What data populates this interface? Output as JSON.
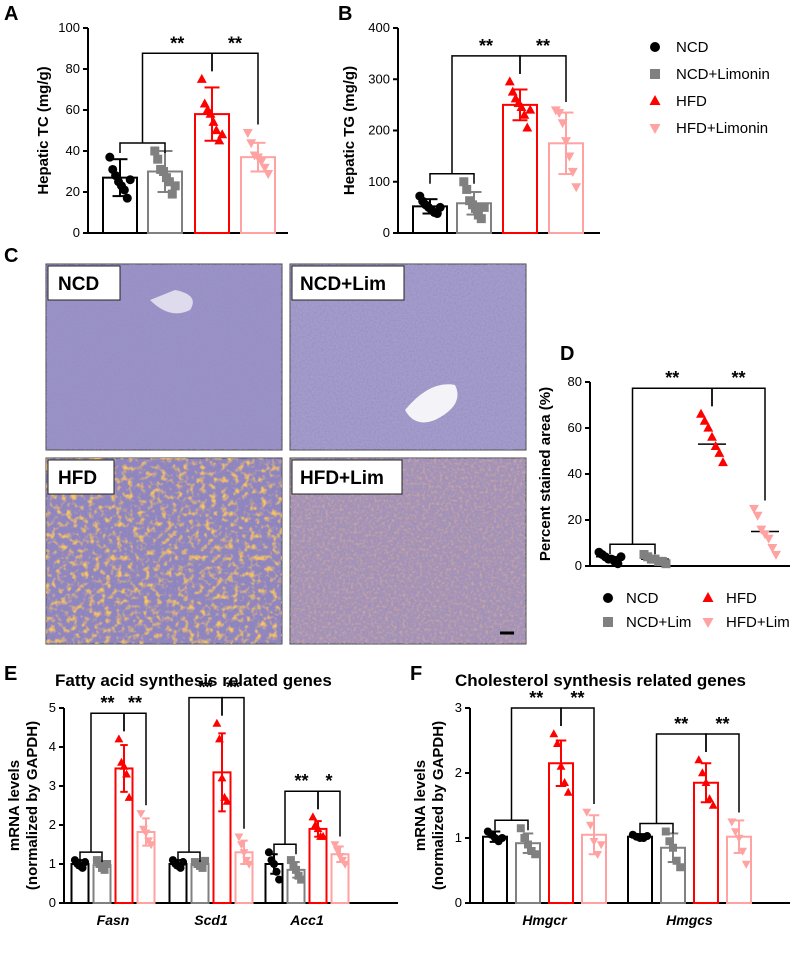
{
  "panels": {
    "A": "A",
    "B": "B",
    "C": "C",
    "D": "D",
    "E": "E",
    "F": "F"
  },
  "colors": {
    "NCD": "#000000",
    "NCD+Limonin": "#808080",
    "HFD": "#ff0000",
    "HFD+Limonin": "#ffa2a2",
    "oil_red": "#f08a1c",
    "hematoxylin": "#5a4f96"
  },
  "legend_main": [
    {
      "label": "NCD",
      "marker": "circle",
      "color": "#000000"
    },
    {
      "label": "NCD+Limonin",
      "marker": "square",
      "color": "#808080"
    },
    {
      "label": "HFD",
      "marker": "triangle",
      "color": "#ff0000"
    },
    {
      "label": "HFD+Limonin",
      "marker": "triangle-down",
      "color": "#ffa2a2"
    }
  ],
  "legend_D": [
    {
      "label": "NCD",
      "marker": "circle",
      "color": "#000000"
    },
    {
      "label": "HFD",
      "marker": "triangle",
      "color": "#ff0000"
    },
    {
      "label": "NCD+Lim",
      "marker": "square",
      "color": "#808080"
    },
    {
      "label": "HFD+Lim",
      "marker": "triangle-down",
      "color": "#ffa2a2"
    }
  ],
  "images": [
    "NCD",
    "NCD+Lim",
    "HFD",
    "HFD+Lim"
  ],
  "titles": {
    "E": "Fatty acid synthesis  related genes",
    "F": "Cholesterol synthesis related genes"
  },
  "chart_data": [
    {
      "id": "A",
      "type": "bar",
      "ylabel": "Hepatic TC (mg/g)",
      "ylim": [
        0,
        100
      ],
      "yticks": [
        0,
        20,
        40,
        60,
        80,
        100
      ],
      "series": [
        {
          "name": "NCD",
          "mean": 27,
          "sd": 9,
          "points": [
            37,
            31,
            28,
            25,
            23,
            21,
            17,
            26
          ]
        },
        {
          "name": "NCD+Limonin",
          "mean": 30,
          "sd": 10,
          "points": [
            40,
            36,
            31,
            30,
            27,
            25,
            19,
            23
          ]
        },
        {
          "name": "HFD",
          "mean": 58,
          "sd": 13,
          "points": [
            75,
            63,
            60,
            58,
            54,
            50,
            45,
            48
          ]
        },
        {
          "name": "HFD+Limonin",
          "mean": 37,
          "sd": 7,
          "points": [
            49,
            44,
            38,
            37,
            35,
            32,
            29
          ]
        }
      ],
      "significance": [
        {
          "from": [
            0,
            1
          ],
          "to": 2,
          "label": "**"
        },
        {
          "from": [
            2
          ],
          "to": 3,
          "label": "**"
        }
      ]
    },
    {
      "id": "B",
      "type": "bar",
      "ylabel": "Hepatic TG (mg/g)",
      "ylim": [
        0,
        400
      ],
      "yticks": [
        0,
        100,
        200,
        300,
        400
      ],
      "series": [
        {
          "name": "NCD",
          "mean": 52,
          "sd": 14,
          "points": [
            72,
            62,
            55,
            50,
            45,
            40,
            38,
            50
          ]
        },
        {
          "name": "NCD+Limonin",
          "mean": 58,
          "sd": 22,
          "points": [
            100,
            85,
            63,
            55,
            48,
            35,
            28,
            50
          ]
        },
        {
          "name": "HFD",
          "mean": 250,
          "sd": 30,
          "points": [
            295,
            275,
            262,
            253,
            245,
            230,
            205,
            240
          ]
        },
        {
          "name": "HFD+Limonin",
          "mean": 175,
          "sd": 60,
          "points": [
            240,
            235,
            215,
            180,
            150,
            120,
            90
          ]
        }
      ],
      "significance": [
        {
          "from": [
            0,
            1
          ],
          "to": 2,
          "label": "**"
        },
        {
          "from": [
            2
          ],
          "to": 3,
          "label": "**"
        }
      ]
    },
    {
      "id": "D",
      "type": "scatter",
      "ylabel": "Percent stained area (%)",
      "ylim": [
        0,
        80
      ],
      "yticks": [
        0,
        20,
        40,
        60,
        80
      ],
      "series": [
        {
          "name": "NCD",
          "mean": 4,
          "points": [
            6,
            5,
            4,
            3,
            3,
            2,
            1,
            4
          ]
        },
        {
          "name": "NCD+Lim",
          "mean": 3,
          "points": [
            5,
            4,
            3,
            3,
            2,
            2,
            1
          ]
        },
        {
          "name": "HFD",
          "mean": 53,
          "points": [
            66,
            63,
            60,
            56,
            52,
            49,
            45
          ]
        },
        {
          "name": "HFD+Lim",
          "mean": 15,
          "points": [
            25,
            22,
            16,
            14,
            12,
            8,
            5
          ]
        }
      ],
      "significance": [
        {
          "from": [
            0,
            1
          ],
          "to": 2,
          "label": "**"
        },
        {
          "from": [
            2
          ],
          "to": 3,
          "label": "**"
        }
      ]
    },
    {
      "id": "E",
      "type": "bar",
      "ylabel": "mRNA levels",
      "ylabel2": "(normalized by GAPDH)",
      "ylim": [
        0,
        5
      ],
      "yticks": [
        0,
        1,
        2,
        3,
        4,
        5
      ],
      "categories": [
        "Fasn",
        "Scd1",
        "Acc1"
      ],
      "groups": [
        {
          "category": "Fasn",
          "series": [
            {
              "name": "NCD",
              "mean": 1.0,
              "sd": 0.1,
              "points": [
                1.1,
                1.0,
                0.95,
                0.9,
                1.05
              ]
            },
            {
              "name": "NCD+Limonin",
              "mean": 0.97,
              "sd": 0.1,
              "points": [
                1.1,
                1.0,
                0.9,
                0.85,
                1.0
              ]
            },
            {
              "name": "HFD",
              "mean": 3.45,
              "sd": 0.6,
              "points": [
                4.2,
                3.6,
                3.5,
                3.3,
                2.7
              ]
            },
            {
              "name": "HFD+Limonin",
              "mean": 1.82,
              "sd": 0.35,
              "points": [
                2.3,
                1.9,
                1.8,
                1.6,
                1.5
              ]
            }
          ],
          "significance": [
            {
              "from": [
                0,
                1
              ],
              "to": 2,
              "label": "**"
            },
            {
              "from": [
                2
              ],
              "to": 3,
              "label": "**"
            }
          ]
        },
        {
          "category": "Scd1",
          "series": [
            {
              "name": "NCD",
              "mean": 1.0,
              "sd": 0.1,
              "points": [
                1.1,
                1.0,
                0.95,
                0.9,
                1.05
              ]
            },
            {
              "name": "NCD+Limonin",
              "mean": 1.0,
              "sd": 0.08,
              "points": [
                1.05,
                1.0,
                0.95,
                0.9,
                1.08
              ]
            },
            {
              "name": "HFD",
              "mean": 3.35,
              "sd": 1.0,
              "points": [
                4.6,
                4.2,
                3.2,
                2.7,
                2.6
              ]
            },
            {
              "name": "HFD+Limonin",
              "mean": 1.3,
              "sd": 0.3,
              "points": [
                1.7,
                1.5,
                1.3,
                1.1,
                1.0
              ]
            }
          ],
          "significance": [
            {
              "from": [
                0,
                1
              ],
              "to": 2,
              "label": "**"
            },
            {
              "from": [
                2
              ],
              "to": 3,
              "label": "**"
            }
          ]
        },
        {
          "category": "Acc1",
          "series": [
            {
              "name": "NCD",
              "mean": 1.0,
              "sd": 0.25,
              "points": [
                1.3,
                1.1,
                1.0,
                0.8,
                0.6
              ]
            },
            {
              "name": "NCD+Limonin",
              "mean": 0.85,
              "sd": 0.2,
              "points": [
                1.1,
                0.95,
                0.85,
                0.7,
                0.6
              ]
            },
            {
              "name": "HFD",
              "mean": 1.9,
              "sd": 0.2,
              "points": [
                2.2,
                2.0,
                1.9,
                1.7,
                1.7
              ]
            },
            {
              "name": "HFD+Limonin",
              "mean": 1.25,
              "sd": 0.2,
              "points": [
                1.5,
                1.35,
                1.2,
                1.1,
                1.0
              ]
            }
          ],
          "significance": [
            {
              "from": [
                0,
                1
              ],
              "to": 2,
              "label": "**"
            },
            {
              "from": [
                2
              ],
              "to": 3,
              "label": "*"
            }
          ]
        }
      ]
    },
    {
      "id": "F",
      "type": "bar",
      "ylabel": "mRNA levels",
      "ylabel2": "(normalized by GAPDH)",
      "ylim": [
        0,
        3
      ],
      "yticks": [
        0,
        1,
        2,
        3
      ],
      "categories": [
        "Hmgcr",
        "Hmgcs"
      ],
      "groups": [
        {
          "category": "Hmgcr",
          "series": [
            {
              "name": "NCD",
              "mean": 1.02,
              "sd": 0.08,
              "points": [
                1.1,
                1.05,
                1.0,
                0.95,
                1.0
              ]
            },
            {
              "name": "NCD+Limonin",
              "mean": 0.92,
              "sd": 0.15,
              "points": [
                1.15,
                1.0,
                0.9,
                0.8,
                0.75
              ]
            },
            {
              "name": "HFD",
              "mean": 2.15,
              "sd": 0.35,
              "points": [
                2.6,
                2.45,
                2.1,
                1.85,
                1.7
              ]
            },
            {
              "name": "HFD+Limonin",
              "mean": 1.05,
              "sd": 0.3,
              "points": [
                1.4,
                1.2,
                0.95,
                0.75,
                0.9
              ]
            }
          ],
          "significance": [
            {
              "from": [
                0,
                1
              ],
              "to": 2,
              "label": "**"
            },
            {
              "from": [
                2
              ],
              "to": 3,
              "label": "**"
            }
          ]
        },
        {
          "category": "Hmgcs",
          "series": [
            {
              "name": "NCD",
              "mean": 1.02,
              "sd": 0.04,
              "points": [
                1.05,
                1.02,
                1.0,
                1.0,
                1.03
              ]
            },
            {
              "name": "NCD+Limonin",
              "mean": 0.85,
              "sd": 0.22,
              "points": [
                1.1,
                0.95,
                0.85,
                0.65,
                0.55
              ]
            },
            {
              "name": "HFD",
              "mean": 1.85,
              "sd": 0.3,
              "points": [
                2.2,
                2.0,
                1.85,
                1.6,
                1.5
              ]
            },
            {
              "name": "HFD+Limonin",
              "mean": 1.02,
              "sd": 0.25,
              "points": [
                1.25,
                1.1,
                1.0,
                0.8,
                0.6
              ]
            }
          ],
          "significance": [
            {
              "from": [
                0,
                1
              ],
              "to": 2,
              "label": "**"
            },
            {
              "from": [
                2
              ],
              "to": 3,
              "label": "**"
            }
          ]
        }
      ]
    }
  ]
}
